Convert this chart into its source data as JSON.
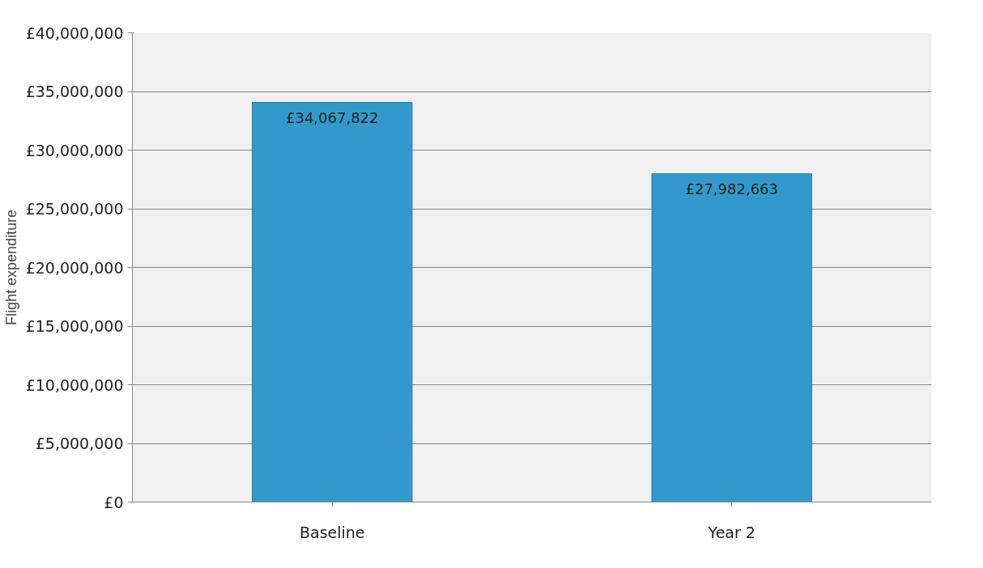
{
  "chart_data": {
    "type": "bar",
    "ylabel": "Flight expenditure",
    "categories": [
      "Baseline",
      "Year 2"
    ],
    "values": [
      34067822,
      27982663
    ],
    "color": "#3399cc",
    "value_labels": [
      "£34,067,822",
      "£27,982,663"
    ],
    "ylim": [
      0,
      40000000
    ],
    "yticks": [
      {
        "value": 0,
        "label": "£0"
      },
      {
        "value": 5000000,
        "label": "£5,000,000"
      },
      {
        "value": 10000000,
        "label": "£10,000,000"
      },
      {
        "value": 15000000,
        "label": "£15,000,000"
      },
      {
        "value": 20000000,
        "label": "£20,000,000"
      },
      {
        "value": 25000000,
        "label": "£25,000,000"
      },
      {
        "value": 30000000,
        "label": "£30,000,000"
      },
      {
        "value": 35000000,
        "label": "£35,000,000"
      },
      {
        "value": 40000000,
        "label": "£40,000,000"
      }
    ],
    "grid": "y"
  }
}
